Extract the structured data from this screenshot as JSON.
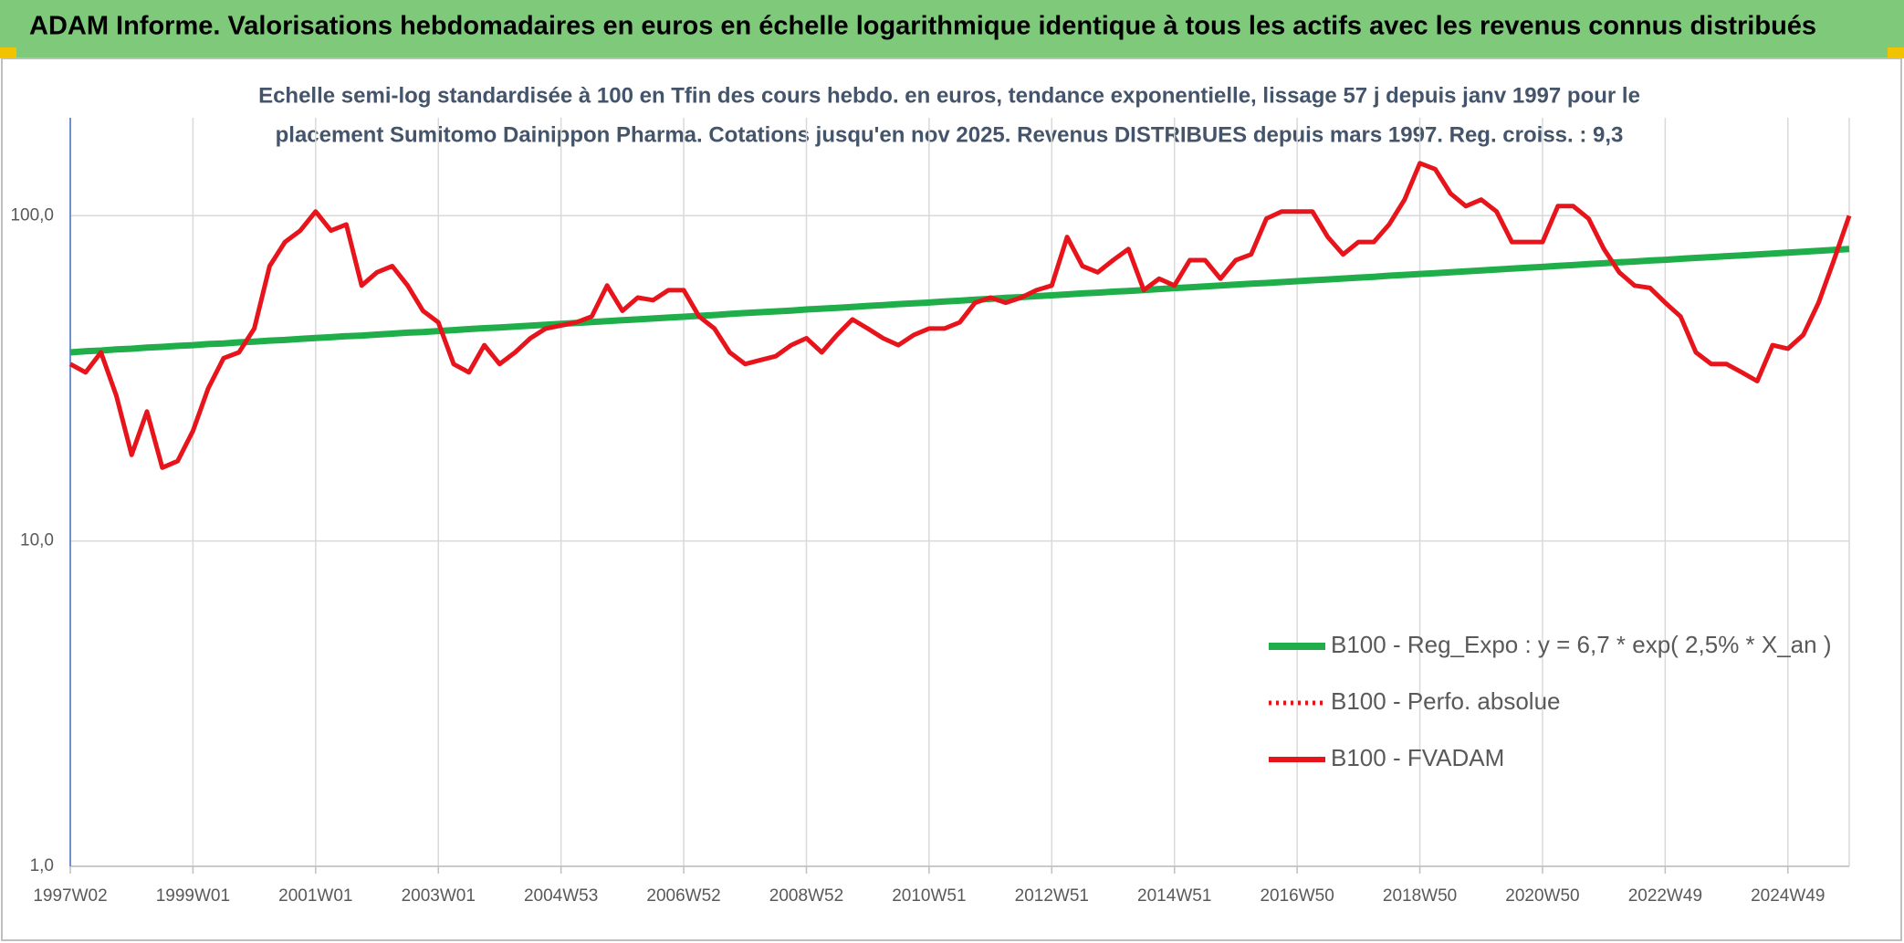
{
  "header": {
    "title": "ADAM Informe. Valorisations hebdomadaires en euros en échelle logarithmique identique à tous les actifs avec les revenus connus distribués"
  },
  "chart_data": {
    "type": "line",
    "title": [
      "Echelle semi-log standardisée à 100 en Tfin des cours hebdo. en euros, tendance exponentielle, lissage 57 j depuis janv 1997 pour le",
      "placement Sumitomo Dainippon Pharma. Cotations jusqu'en nov 2025. Revenus DISTRIBUES depuis mars 1997. Reg. croiss. : 9,3"
    ],
    "log_scale": true,
    "grid": true,
    "legend": "lower right",
    "ylim": [
      1,
      200
    ],
    "yticks": [
      {
        "value": 1,
        "label": "1,0"
      },
      {
        "value": 10,
        "label": "10,0"
      },
      {
        "value": 100,
        "label": "100,0"
      }
    ],
    "categories": [
      "1997W02",
      null,
      null,
      null,
      null,
      null,
      null,
      null,
      "1999W01",
      null,
      null,
      null,
      null,
      null,
      null,
      null,
      "2001W01",
      null,
      null,
      null,
      null,
      null,
      null,
      null,
      "2003W01",
      null,
      null,
      null,
      null,
      null,
      null,
      null,
      "2004W53",
      null,
      null,
      null,
      null,
      null,
      null,
      null,
      "2006W52",
      null,
      null,
      null,
      null,
      null,
      null,
      null,
      "2008W52",
      null,
      null,
      null,
      null,
      null,
      null,
      null,
      "2010W51",
      null,
      null,
      null,
      null,
      null,
      null,
      null,
      "2012W51",
      null,
      null,
      null,
      null,
      null,
      null,
      null,
      "2014W51",
      null,
      null,
      null,
      null,
      null,
      null,
      null,
      "2016W50",
      null,
      null,
      null,
      null,
      null,
      null,
      null,
      "2018W50",
      null,
      null,
      null,
      null,
      null,
      null,
      null,
      "2020W50",
      null,
      null,
      null,
      null,
      null,
      null,
      null,
      "2022W49",
      null,
      null,
      null,
      null,
      null,
      null,
      null,
      "2024W49",
      null,
      null,
      null,
      null
    ],
    "series": [
      {
        "name": "B100 - Reg_Expo : y = 6,7 * exp( 2,5% *  X_an )",
        "color": "#1fae4a",
        "width": 7,
        "line_style": "solid",
        "values": [
          38.0,
          38.3,
          38.5,
          38.8,
          39.0,
          39.3,
          39.5,
          39.8,
          40.0,
          40.3,
          40.5,
          40.8,
          41.0,
          41.3,
          41.5,
          41.8,
          42.1,
          42.3,
          42.6,
          42.8,
          43.1,
          43.4,
          43.7,
          43.9,
          44.2,
          44.5,
          44.8,
          45.1,
          45.3,
          45.6,
          45.9,
          46.2,
          46.5,
          46.8,
          47.1,
          47.4,
          47.7,
          48.0,
          48.3,
          48.6,
          48.9,
          49.2,
          49.5,
          49.9,
          50.2,
          50.5,
          50.8,
          51.1,
          51.5,
          51.8,
          52.1,
          52.4,
          52.8,
          53.1,
          53.5,
          53.8,
          54.1,
          54.5,
          54.8,
          55.2,
          55.5,
          55.9,
          56.2,
          56.6,
          56.9,
          57.3,
          57.7,
          58.0,
          58.4,
          58.7,
          59.1,
          59.5,
          59.9,
          60.2,
          60.6,
          61.0,
          61.4,
          61.8,
          62.1,
          62.5,
          62.9,
          63.3,
          63.7,
          64.1,
          64.5,
          64.9,
          65.4,
          65.8,
          66.2,
          66.6,
          67.0,
          67.4,
          67.9,
          68.3,
          68.8,
          69.2,
          69.6,
          70.1,
          70.5,
          71.0,
          71.4,
          71.9,
          72.3,
          72.8,
          73.2,
          73.7,
          74.2,
          74.6,
          75.1,
          75.5,
          76.0,
          76.5,
          77.0,
          77.5,
          78.0,
          78.5,
          79.0
        ]
      },
      {
        "name": "B100 - Perfo. absolue",
        "color": "#e8141b",
        "width": 4,
        "line_style": "dotted",
        "values": [
          null,
          null,
          null,
          null,
          null,
          null,
          null,
          null,
          null,
          null,
          null,
          null,
          null,
          null,
          null,
          null,
          null,
          null,
          null,
          null,
          null,
          null,
          null,
          null,
          null,
          null,
          null,
          null,
          null,
          null,
          null,
          null,
          null,
          null,
          null,
          null,
          null,
          null,
          null,
          null,
          null,
          null,
          null,
          null,
          null,
          null,
          null,
          null,
          null,
          null,
          null,
          null,
          null,
          null,
          null,
          null,
          null,
          null,
          null,
          null,
          null,
          null,
          null,
          null,
          null,
          null,
          null,
          null,
          null,
          null,
          null,
          null,
          null,
          null,
          null,
          null,
          null,
          null,
          null,
          null,
          null,
          null,
          null,
          null,
          null,
          null,
          null,
          null,
          null,
          null,
          null,
          null,
          null,
          null,
          null,
          null,
          null,
          null,
          null,
          null,
          null,
          null,
          null,
          null,
          null,
          null,
          null,
          null,
          null,
          null,
          null,
          null,
          null,
          null,
          null,
          null,
          null
        ]
      },
      {
        "name": "B100 - FVADAM",
        "color": "#e8141b",
        "width": 5,
        "line_style": "solid",
        "values": [
          35,
          33,
          38,
          28,
          18.4,
          25,
          16.8,
          17.6,
          21.8,
          29.5,
          36.5,
          38,
          45,
          70,
          83,
          90,
          103,
          90,
          94,
          61,
          67,
          70,
          61,
          51,
          47,
          35,
          33,
          40,
          35,
          38,
          42,
          45,
          46,
          47,
          49,
          61,
          51,
          56,
          55,
          59,
          59,
          49,
          45,
          38,
          35,
          36,
          37,
          40,
          42,
          38,
          43,
          48,
          45,
          42,
          40,
          43,
          45,
          45,
          47,
          54,
          56,
          54,
          56,
          59,
          61,
          86,
          70,
          67,
          73,
          79,
          59,
          64,
          61,
          73,
          73,
          64,
          73,
          76,
          98,
          103,
          103,
          103,
          86,
          76,
          83,
          83,
          94,
          112,
          145,
          139,
          117,
          107,
          112,
          103,
          83,
          83,
          83,
          107,
          107,
          98,
          79,
          67,
          61,
          60,
          54,
          49,
          38,
          35,
          35,
          33,
          31,
          40,
          39,
          43,
          54,
          73,
          100
        ]
      }
    ]
  }
}
